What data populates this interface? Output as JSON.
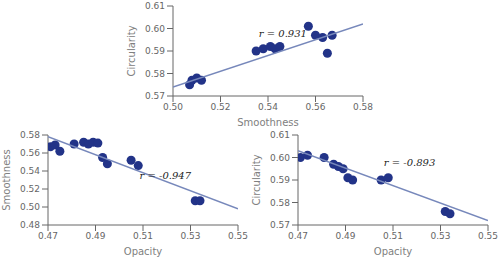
{
  "chart_data": [
    {
      "type": "scatter",
      "x_label": "Smoothness",
      "y_label": "Circularity",
      "annotation": "r = 0.931",
      "grid": false,
      "xlim": [
        0.5,
        0.58
      ],
      "ylim": [
        0.57,
        0.61
      ],
      "xticks": [
        {
          "value": 0.5,
          "label": "0.50"
        },
        0.52,
        0.54,
        0.56,
        0.58
      ],
      "yticks": [
        0.57,
        0.58,
        0.59,
        {
          "value": 0.6,
          "label": "0.60"
        },
        0.61
      ],
      "series": [
        {
          "type": "scatter",
          "color": "#223388",
          "x": [
            0.507,
            0.508,
            0.51,
            0.512,
            0.535,
            0.538,
            0.541,
            0.543,
            0.545,
            0.557,
            0.56,
            0.563,
            0.565,
            0.567
          ],
          "values": [
            0.575,
            0.577,
            0.578,
            0.577,
            0.59,
            0.591,
            0.592,
            0.591,
            0.592,
            0.601,
            0.597,
            0.596,
            0.589,
            0.597
          ]
        },
        {
          "type": "line",
          "color": "#7788bb",
          "x": [
            0.5,
            0.58
          ],
          "values": [
            0.574,
            0.602
          ]
        }
      ]
    },
    {
      "type": "scatter",
      "x_label": "Opacity",
      "y_label": "Smoothness",
      "annotation": "r = -0.947",
      "grid": false,
      "xlim": [
        0.47,
        0.55
      ],
      "ylim": [
        0.48,
        0.58
      ],
      "xticks": [
        0.47,
        0.49,
        0.51,
        0.53,
        0.55
      ],
      "yticks": [
        0.48,
        {
          "value": 0.5,
          "label": "0.50"
        },
        0.52,
        0.54,
        0.56,
        0.58
      ],
      "series": [
        {
          "type": "scatter",
          "color": "#223388",
          "x": [
            0.471,
            0.473,
            0.475,
            0.481,
            0.485,
            0.487,
            0.489,
            0.491,
            0.493,
            0.495,
            0.505,
            0.508,
            0.532,
            0.534
          ],
          "values": [
            0.567,
            0.569,
            0.562,
            0.57,
            0.572,
            0.57,
            0.572,
            0.571,
            0.555,
            0.548,
            0.552,
            0.546,
            0.507,
            0.507
          ]
        },
        {
          "type": "line",
          "color": "#7788bb",
          "x": [
            0.47,
            0.55
          ],
          "values": [
            0.578,
            0.498
          ]
        }
      ]
    },
    {
      "type": "scatter",
      "x_label": "Opacity",
      "y_label": "Circularity",
      "annotation": "r = -0.893",
      "grid": false,
      "xlim": [
        0.47,
        0.55
      ],
      "ylim": [
        0.57,
        0.61
      ],
      "xticks": [
        0.47,
        0.49,
        0.51,
        0.53,
        0.55
      ],
      "yticks": [
        0.57,
        0.58,
        0.59,
        {
          "value": 0.6,
          "label": "0.60"
        },
        0.61
      ],
      "series": [
        {
          "type": "scatter",
          "color": "#223388",
          "x": [
            0.471,
            0.474,
            0.481,
            0.485,
            0.487,
            0.489,
            0.491,
            0.493,
            0.505,
            0.508,
            0.532,
            0.534
          ],
          "values": [
            0.6,
            0.601,
            0.6,
            0.597,
            0.596,
            0.595,
            0.591,
            0.59,
            0.59,
            0.591,
            0.576,
            0.575
          ]
        },
        {
          "type": "line",
          "color": "#7788bb",
          "x": [
            0.47,
            0.55
          ],
          "values": [
            0.603,
            0.572
          ]
        }
      ]
    }
  ]
}
